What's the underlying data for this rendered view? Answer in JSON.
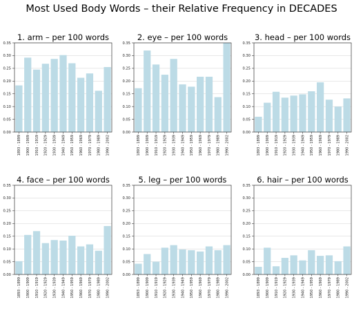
{
  "figure": {
    "title": "Most Used Body Words – their Relative Frequency in DECADES",
    "colors": {
      "bar": "#bcdbe6",
      "grid": "#d9d9d9",
      "axis": "#333333"
    }
  },
  "chart_data": [
    {
      "type": "bar",
      "title": "1. arm – per 100 words",
      "categories": [
        "1893 - 1899",
        "1900 - 1909",
        "1910 - 1919",
        "1920 - 1929",
        "1930 - 1939",
        "1940 - 1949",
        "1950 - 1959",
        "1960 - 1969",
        "1970 - 1979",
        "1980 - 1989",
        "1990 - 2002"
      ],
      "values": [
        0.183,
        0.292,
        0.245,
        0.268,
        0.287,
        0.302,
        0.27,
        0.213,
        0.23,
        0.162,
        0.255
      ],
      "ylim": [
        0,
        0.35
      ],
      "yticks": [
        "0.00",
        "0.05",
        "0.10",
        "0.15",
        "0.20",
        "0.25",
        "0.30",
        "0.35"
      ],
      "grid": true
    },
    {
      "type": "bar",
      "title": "2. eye – per 100 words",
      "categories": [
        "1893 - 1899",
        "1900 - 1909",
        "1910 - 1919",
        "1920 - 1929",
        "1930 - 1939",
        "1940 - 1949",
        "1950 - 1959",
        "1960 - 1969",
        "1970 - 1979",
        "1980 - 1989",
        "1990 - 2002"
      ],
      "values": [
        0.172,
        0.32,
        0.265,
        0.225,
        0.287,
        0.187,
        0.178,
        0.217,
        0.217,
        0.137,
        0.35
      ],
      "ylim": [
        0,
        0.35
      ],
      "yticks": [
        "0.00",
        "0.05",
        "0.10",
        "0.15",
        "0.20",
        "0.25",
        "0.30",
        "0.35"
      ],
      "grid": true
    },
    {
      "type": "bar",
      "title": "3. head – per 100 words",
      "categories": [
        "1893 - 1899",
        "1900 - 1909",
        "1910 - 1919",
        "1920 - 1929",
        "1930 - 1939",
        "1940 - 1949",
        "1950 - 1959",
        "1960 - 1969",
        "1970 - 1979",
        "1980 - 1989",
        "1990 - 2002"
      ],
      "values": [
        0.06,
        0.115,
        0.158,
        0.135,
        0.143,
        0.148,
        0.16,
        0.195,
        0.127,
        0.1,
        0.132
      ],
      "ylim": [
        0,
        0.35
      ],
      "yticks": [
        "0.00",
        "0.05",
        "0.10",
        "0.15",
        "0.20",
        "0.25",
        "0.30",
        "0.35"
      ],
      "grid": true
    },
    {
      "type": "bar",
      "title": "4. face – per 100 words",
      "categories": [
        "1893 - 1899",
        "1900 - 1909",
        "1910 - 1919",
        "1920 - 1929",
        "1930 - 1939",
        "1940 - 1949",
        "1950 - 1959",
        "1960 - 1969",
        "1970 - 1979",
        "1980 - 1989",
        "1990 - 2002"
      ],
      "values": [
        0.052,
        0.155,
        0.17,
        0.123,
        0.135,
        0.133,
        0.152,
        0.11,
        0.118,
        0.093,
        0.19
      ],
      "ylim": [
        0,
        0.35
      ],
      "yticks": [
        "0.00",
        "0.05",
        "0.10",
        "0.15",
        "0.20",
        "0.25",
        "0.30",
        "0.35"
      ],
      "grid": true
    },
    {
      "type": "bar",
      "title": "5. leg – per 100 words",
      "categories": [
        "1893 - 1899",
        "1900 - 1909",
        "1910 - 1919",
        "1920 - 1929",
        "1930 - 1939",
        "1940 - 1949",
        "1950 - 1959",
        "1960 - 1969",
        "1970 - 1979",
        "1980 - 1989",
        "1990 - 2002"
      ],
      "values": [
        0.042,
        0.08,
        0.05,
        0.105,
        0.115,
        0.098,
        0.095,
        0.09,
        0.11,
        0.095,
        0.115
      ],
      "ylim": [
        0,
        0.35
      ],
      "yticks": [
        "0.00",
        "0.05",
        "0.10",
        "0.15",
        "0.20",
        "0.25",
        "0.30",
        "0.35"
      ],
      "grid": true
    },
    {
      "type": "bar",
      "title": "6. hair – per 100 words",
      "categories": [
        "1893 - 1899",
        "1900 - 1909",
        "1910 - 1919",
        "1920 - 1929",
        "1930 - 1939",
        "1940 - 1949",
        "1950 - 1959",
        "1960 - 1969",
        "1970 - 1979",
        "1980 - 1989",
        "1990 - 2002"
      ],
      "values": [
        0.03,
        0.105,
        0.032,
        0.065,
        0.075,
        0.055,
        0.095,
        0.073,
        0.075,
        0.052,
        0.11
      ],
      "ylim": [
        0,
        0.35
      ],
      "yticks": [
        "0.00",
        "0.05",
        "0.10",
        "0.15",
        "0.20",
        "0.25",
        "0.30",
        "0.35"
      ],
      "grid": true
    }
  ]
}
